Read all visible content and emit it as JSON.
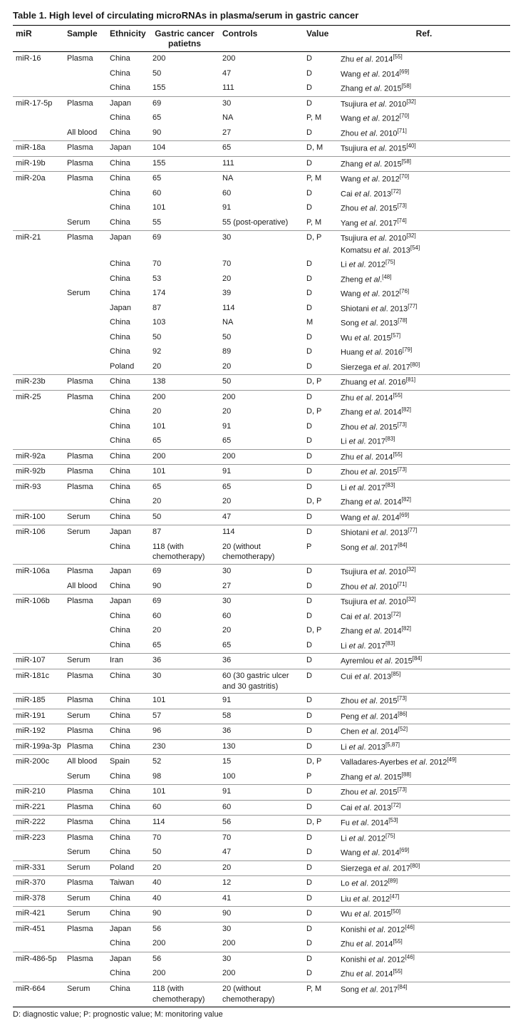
{
  "title": "Table 1. High level of circulating microRNAs in plasma/serum in gastric cancer",
  "columns": {
    "mir": "miR",
    "sample": "Sample",
    "ethnicity": "Ethnicity",
    "patients": "Gastric cancer patietns",
    "controls": "Controls",
    "value": "Value",
    "ref": "Ref."
  },
  "footnote": "D: diagnostic value; P: prognostic value; M: monitoring value",
  "rows": [
    {
      "sep": true,
      "mir": "miR-16",
      "sample": "Plasma",
      "eth": "China",
      "pat": "200",
      "ctrl": "200",
      "val": "D",
      "au": "Zhu",
      "yr": "2014",
      "cite": "[55]"
    },
    {
      "mir": "",
      "sample": "",
      "eth": "China",
      "pat": "50",
      "ctrl": "47",
      "val": "D",
      "au": "Wang",
      "yr": "2014",
      "cite": "[69]"
    },
    {
      "mir": "",
      "sample": "",
      "eth": "China",
      "pat": "155",
      "ctrl": "111",
      "val": "D",
      "au": "Zhang",
      "yr": "2015",
      "cite": "[58]"
    },
    {
      "sep": true,
      "mir": "miR-17-5p",
      "sample": "Plasma",
      "eth": "Japan",
      "pat": "69",
      "ctrl": "30",
      "val": "D",
      "au": "Tsujiura",
      "yr": "2010",
      "cite": "[32]"
    },
    {
      "mir": "",
      "sample": "",
      "eth": "China",
      "pat": "65",
      "ctrl": "NA",
      "val": "P, M",
      "au": "Wang",
      "yr": "2012",
      "cite": "[70]"
    },
    {
      "mir": "",
      "sample": "All blood",
      "eth": "China",
      "pat": "90",
      "ctrl": "27",
      "val": "D",
      "au": "Zhou",
      "yr": "2010",
      "cite": "[71]"
    },
    {
      "sep": true,
      "mir": "miR-18a",
      "sample": "Plasma",
      "eth": "Japan",
      "pat": "104",
      "ctrl": "65",
      "val": "D, M",
      "au": "Tsujiura",
      "yr": "2015",
      "cite": "[40]"
    },
    {
      "sep": true,
      "mir": "miR-19b",
      "sample": "Plasma",
      "eth": "China",
      "pat": "155",
      "ctrl": "111",
      "val": "D",
      "au": "Zhang",
      "yr": "2015",
      "cite": "[58]"
    },
    {
      "sep": true,
      "mir": "miR-20a",
      "sample": "Plasma",
      "eth": "China",
      "pat": "65",
      "ctrl": "NA",
      "val": "P, M",
      "au": "Wang",
      "yr": "2012",
      "cite": "[70]"
    },
    {
      "mir": "",
      "sample": "",
      "eth": "China",
      "pat": "60",
      "ctrl": "60",
      "val": "D",
      "au": "Cai",
      "yr": "2013",
      "cite": "[72]"
    },
    {
      "mir": "",
      "sample": "",
      "eth": "China",
      "pat": "101",
      "ctrl": "91",
      "val": "D",
      "au": "Zhou",
      "yr": "2015",
      "cite": "[73]"
    },
    {
      "mir": "",
      "sample": "Serum",
      "eth": "China",
      "pat": "55",
      "ctrl": "55 (post-operative)",
      "val": "P, M",
      "au": "Yang",
      "yr": "2017",
      "cite": "[74]"
    },
    {
      "sep": true,
      "mir": "miR-21",
      "sample": "Plasma",
      "eth": "Japan",
      "pat": "69",
      "ctrl": "30",
      "val": "D, P",
      "au": "Tsujiura",
      "yr": "2010",
      "cite": "[32]",
      "ref2_au": "Komatsu",
      "ref2_yr": "2013",
      "ref2_cite": "[54]"
    },
    {
      "mir": "",
      "sample": "",
      "eth": "China",
      "pat": "70",
      "ctrl": "70",
      "val": "D",
      "au": "Li",
      "yr": "2012",
      "cite": "[75]"
    },
    {
      "mir": "",
      "sample": "",
      "eth": "China",
      "pat": "53",
      "ctrl": "20",
      "val": "D",
      "au": "Zheng",
      "yr": "",
      "cite": "[48]"
    },
    {
      "mir": "",
      "sample": "Serum",
      "eth": "China",
      "pat": "174",
      "ctrl": "39",
      "val": "D",
      "au": "Wang",
      "yr": "2012",
      "cite": "[76]"
    },
    {
      "mir": "",
      "sample": "",
      "eth": "Japan",
      "pat": "87",
      "ctrl": "114",
      "val": "D",
      "au": "Shiotani",
      "yr": "2013",
      "cite": "[77]"
    },
    {
      "mir": "",
      "sample": "",
      "eth": "China",
      "pat": "103",
      "ctrl": "NA",
      "val": "M",
      "au": "Song",
      "yr": "2013",
      "cite": "[78]"
    },
    {
      "mir": "",
      "sample": "",
      "eth": "China",
      "pat": "50",
      "ctrl": "50",
      "val": "D",
      "au": "Wu",
      "yr": "2015",
      "cite": "[57]"
    },
    {
      "mir": "",
      "sample": "",
      "eth": "China",
      "pat": "92",
      "ctrl": "89",
      "val": "D",
      "au": "Huang",
      "yr": "2016",
      "cite": "[79]"
    },
    {
      "mir": "",
      "sample": "",
      "eth": "Poland",
      "pat": "20",
      "ctrl": "20",
      "val": "D",
      "au": "Sierzega",
      "yr": "2017",
      "cite": "[80]"
    },
    {
      "sep": true,
      "mir": "miR-23b",
      "sample": "Plasma",
      "eth": "China",
      "pat": "138",
      "ctrl": "50",
      "val": "D, P",
      "au": "Zhuang",
      "yr": "2016",
      "cite": "[81]"
    },
    {
      "sep": true,
      "mir": "miR-25",
      "sample": "Plasma",
      "eth": "China",
      "pat": "200",
      "ctrl": "200",
      "val": "D",
      "au": "Zhu",
      "yr": "2014",
      "cite": "[55]"
    },
    {
      "mir": "",
      "sample": "",
      "eth": "China",
      "pat": "20",
      "ctrl": "20",
      "val": "D, P",
      "au": "Zhang",
      "yr": "2014",
      "cite": "[82]"
    },
    {
      "mir": "",
      "sample": "",
      "eth": "China",
      "pat": "101",
      "ctrl": "91",
      "val": "D",
      "au": "Zhou",
      "yr": "2015",
      "cite": "[73]"
    },
    {
      "mir": "",
      "sample": "",
      "eth": "China",
      "pat": "65",
      "ctrl": "65",
      "val": "D",
      "au": "Li",
      "yr": "2017",
      "cite": "[83]"
    },
    {
      "sep": true,
      "mir": "miR-92a",
      "sample": "Plasma",
      "eth": "China",
      "pat": "200",
      "ctrl": "200",
      "val": "D",
      "au": "Zhu",
      "yr": "2014",
      "cite": "[55]"
    },
    {
      "sep": true,
      "mir": "miR-92b",
      "sample": "Plasma",
      "eth": "China",
      "pat": "101",
      "ctrl": "91",
      "val": "D",
      "au": "Zhou",
      "yr": "2015",
      "cite": "[73]"
    },
    {
      "sep": true,
      "mir": "miR-93",
      "sample": "Plasma",
      "eth": "China",
      "pat": "65",
      "ctrl": "65",
      "val": "D",
      "au": "Li",
      "yr": "2017",
      "cite": "[83]"
    },
    {
      "mir": "",
      "sample": "",
      "eth": "China",
      "pat": "20",
      "ctrl": "20",
      "val": "D, P",
      "au": "Zhang",
      "yr": "2014",
      "cite": "[82]"
    },
    {
      "sep": true,
      "mir": "miR-100",
      "sample": "Serum",
      "eth": "China",
      "pat": "50",
      "ctrl": "47",
      "val": "D",
      "au": "Wang",
      "yr": "2014",
      "cite": "[69]"
    },
    {
      "sep": true,
      "mir": "miR-106",
      "sample": "Serum",
      "eth": "Japan",
      "pat": "87",
      "ctrl": "114",
      "val": "D",
      "au": "Shiotani",
      "yr": "2013",
      "cite": "[77]"
    },
    {
      "mir": "",
      "sample": "",
      "eth": "China",
      "pat": "118 (with chemotherapy)",
      "ctrl": "20 (without chemotherapy)",
      "val": "P",
      "au": "Song",
      "yr": "2017",
      "cite": "[84]"
    },
    {
      "sep": true,
      "mir": "miR-106a",
      "sample": "Plasma",
      "eth": "Japan",
      "pat": "69",
      "ctrl": "30",
      "val": "D",
      "au": "Tsujiura",
      "yr": "2010",
      "cite": "[32]"
    },
    {
      "mir": "",
      "sample": "All blood",
      "eth": "China",
      "pat": "90",
      "ctrl": "27",
      "val": "D",
      "au": "Zhou",
      "yr": "2010",
      "cite": "[71]"
    },
    {
      "sep": true,
      "mir": "miR-106b",
      "sample": "Plasma",
      "eth": "Japan",
      "pat": "69",
      "ctrl": "30",
      "val": "D",
      "au": "Tsujiura",
      "yr": "2010",
      "cite": "[32]"
    },
    {
      "mir": "",
      "sample": "",
      "eth": "China",
      "pat": "60",
      "ctrl": "60",
      "val": "D",
      "au": "Cai",
      "yr": "2013",
      "cite": "[72]"
    },
    {
      "mir": "",
      "sample": "",
      "eth": "China",
      "pat": "20",
      "ctrl": "20",
      "val": "D, P",
      "au": "Zhang",
      "yr": "2014",
      "cite": "[82]"
    },
    {
      "mir": "",
      "sample": "",
      "eth": "China",
      "pat": "65",
      "ctrl": "65",
      "val": "D",
      "au": "Li",
      "yr": "2017",
      "cite": "[83]"
    },
    {
      "sep": true,
      "mir": "miR-107",
      "sample": "Serum",
      "eth": "Iran",
      "pat": "36",
      "ctrl": "36",
      "val": "D",
      "au": "Ayremlou",
      "yr": "2015",
      "cite": "[84]"
    },
    {
      "sep": true,
      "mir": "miR-181c",
      "sample": "Plasma",
      "eth": "China",
      "pat": "30",
      "ctrl": "60 (30 gastric ulcer and 30 gastritis)",
      "val": "D",
      "au": "Cui",
      "yr": "2013",
      "cite": "[85]"
    },
    {
      "sep": true,
      "mir": "miR-185",
      "sample": "Plasma",
      "eth": "China",
      "pat": "101",
      "ctrl": "91",
      "val": "D",
      "au": "Zhou",
      "yr": "2015",
      "cite": "[73]"
    },
    {
      "sep": true,
      "mir": "miR-191",
      "sample": "Serum",
      "eth": "China",
      "pat": "57",
      "ctrl": "58",
      "val": "D",
      "au": "Peng",
      "yr": "2014",
      "cite": "[86]"
    },
    {
      "sep": true,
      "mir": "miR-192",
      "sample": "Plasma",
      "eth": "China",
      "pat": "96",
      "ctrl": "36",
      "val": "D",
      "au": "Chen",
      "yr": "2014",
      "cite": "[52]"
    },
    {
      "sep": true,
      "mir": "miR-199a-3p",
      "sample": "Plasma",
      "eth": "China",
      "pat": "230",
      "ctrl": "130",
      "val": "D",
      "au": "Li",
      "yr": "2013",
      "cite": "[5,87]"
    },
    {
      "sep": true,
      "mir": "miR-200c",
      "sample": "All blood",
      "eth": "Spain",
      "pat": "52",
      "ctrl": "15",
      "val": "D, P",
      "au": "Valladares-Ayerbes",
      "yr": "2012",
      "cite": "[49]"
    },
    {
      "mir": "",
      "sample": "Serum",
      "eth": "China",
      "pat": "98",
      "ctrl": "100",
      "val": "P",
      "au": "Zhang",
      "yr": "2015",
      "cite": "[88]"
    },
    {
      "sep": true,
      "mir": "miR-210",
      "sample": "Plasma",
      "eth": "China",
      "pat": "101",
      "ctrl": "91",
      "val": "D",
      "au": "Zhou",
      "yr": "2015",
      "cite": "[73]"
    },
    {
      "sep": true,
      "mir": "miR-221",
      "sample": "Plasma",
      "eth": "China",
      "pat": "60",
      "ctrl": "60",
      "val": "D",
      "au": "Cai",
      "yr": "2013",
      "cite": "[72]"
    },
    {
      "sep": true,
      "mir": "miR-222",
      "sample": "Plasma",
      "eth": "China",
      "pat": "114",
      "ctrl": "56",
      "val": "D, P",
      "au": "Fu",
      "yr": "2014",
      "cite": "[53]"
    },
    {
      "sep": true,
      "mir": "miR-223",
      "sample": "Plasma",
      "eth": "China",
      "pat": "70",
      "ctrl": "70",
      "val": "D",
      "au": "Li",
      "yr": "2012",
      "cite": "[75]"
    },
    {
      "mir": "",
      "sample": "Serum",
      "eth": "China",
      "pat": "50",
      "ctrl": "47",
      "val": "D",
      "au": "Wang",
      "yr": "2014",
      "cite": "[69]"
    },
    {
      "sep": true,
      "mir": "miR-331",
      "sample": "Serum",
      "eth": "Poland",
      "pat": "20",
      "ctrl": "20",
      "val": "D",
      "au": "Sierzega",
      "yr": "2017",
      "cite": "[80]"
    },
    {
      "sep": true,
      "mir": "miR-370",
      "sample": "Plasma",
      "eth": "Taiwan",
      "pat": "40",
      "ctrl": "12",
      "val": "D",
      "au": "Lo",
      "yr": "2012",
      "cite": "[89]"
    },
    {
      "sep": true,
      "mir": "miR-378",
      "sample": "Serum",
      "eth": "China",
      "pat": "40",
      "ctrl": "41",
      "val": "D",
      "au": "Liu",
      "yr": "2012",
      "cite": "[47]"
    },
    {
      "sep": true,
      "mir": "miR-421",
      "sample": "Serum",
      "eth": "China",
      "pat": "90",
      "ctrl": "90",
      "val": "D",
      "au": "Wu",
      "yr": "2015",
      "cite": "[50]"
    },
    {
      "sep": true,
      "mir": "miR-451",
      "sample": "Plasma",
      "eth": "Japan",
      "pat": "56",
      "ctrl": "30",
      "val": "D",
      "au": "Konishi",
      "yr": "2012",
      "cite": "[46]"
    },
    {
      "mir": "",
      "sample": "",
      "eth": "China",
      "pat": "200",
      "ctrl": "200",
      "val": "D",
      "au": "Zhu",
      "yr": "2014",
      "cite": "[55]"
    },
    {
      "sep": true,
      "mir": "miR-486-5p",
      "sample": "Plasma",
      "eth": "Japan",
      "pat": "56",
      "ctrl": "30",
      "val": "D",
      "au": "Konishi",
      "yr": "2012",
      "cite": "[46]"
    },
    {
      "mir": "",
      "sample": "",
      "eth": "China",
      "pat": "200",
      "ctrl": "200",
      "val": "D",
      "au": "Zhu",
      "yr": "2014",
      "cite": "[55]"
    },
    {
      "sep": true,
      "mir": "miR-664",
      "sample": "Serum",
      "eth": "China",
      "pat": "118 (with chemotherapy)",
      "ctrl": "20 (without chemotherapy)",
      "val": "P, M",
      "au": "Song",
      "yr": "2017",
      "cite": "[84]"
    }
  ]
}
